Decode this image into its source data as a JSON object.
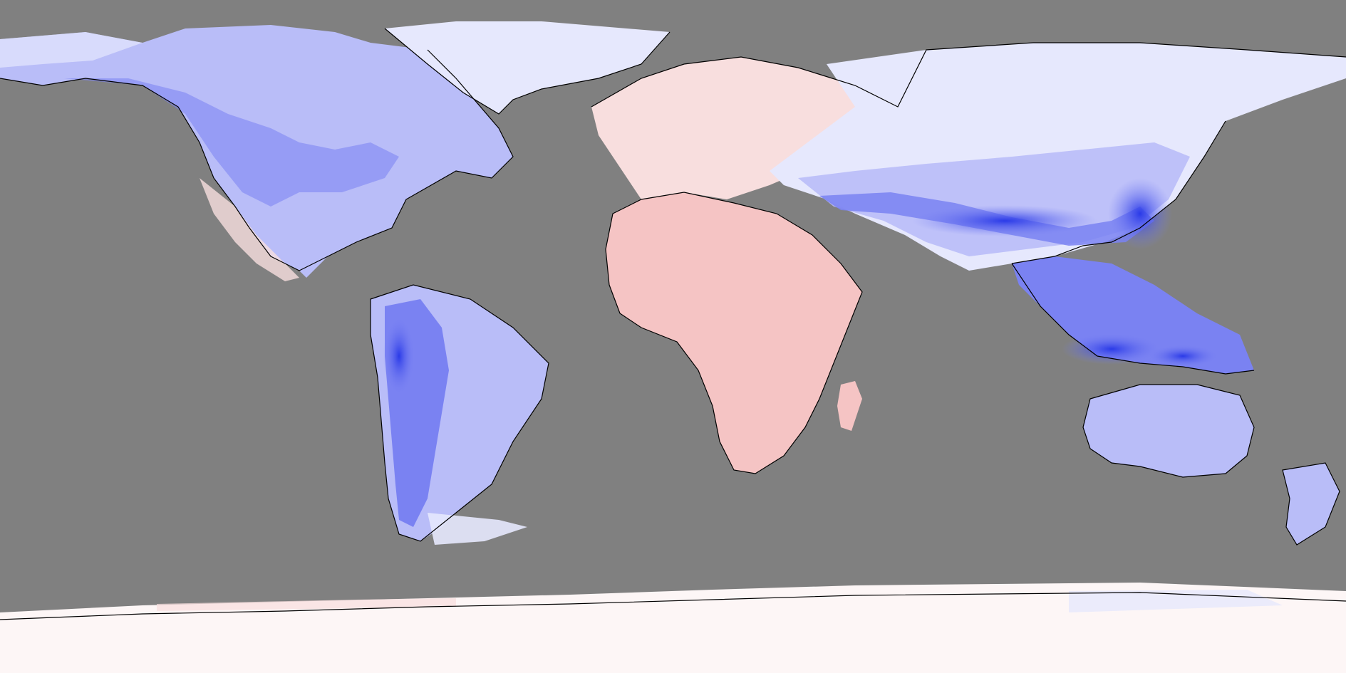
{
  "map": {
    "projection": "equirectangular",
    "ocean_color": "#808080",
    "coastline_color": "#000000",
    "color_scale": {
      "strong_blue": "#2a3ae8",
      "mid_blue": "#7a82f2",
      "light_blue": "#b9bdf8",
      "pale_blue": "#e6e8fd",
      "white": "#fdf6f6",
      "pale_red": "#f8dede",
      "light_red": "#f5c4c4"
    },
    "regions": [
      {
        "name": "north-america",
        "tone": "light_blue"
      },
      {
        "name": "greenland",
        "tone": "pale_blue"
      },
      {
        "name": "south-america",
        "tone": "mid_blue"
      },
      {
        "name": "europe",
        "tone": "pale_red"
      },
      {
        "name": "africa",
        "tone": "light_red"
      },
      {
        "name": "asia",
        "tone": "pale_blue"
      },
      {
        "name": "himalaya-band",
        "tone": "strong_blue"
      },
      {
        "name": "southeast-asia",
        "tone": "mid_blue"
      },
      {
        "name": "australia",
        "tone": "light_blue"
      },
      {
        "name": "new-zealand",
        "tone": "light_blue"
      },
      {
        "name": "antarctica",
        "tone": "white"
      }
    ]
  }
}
